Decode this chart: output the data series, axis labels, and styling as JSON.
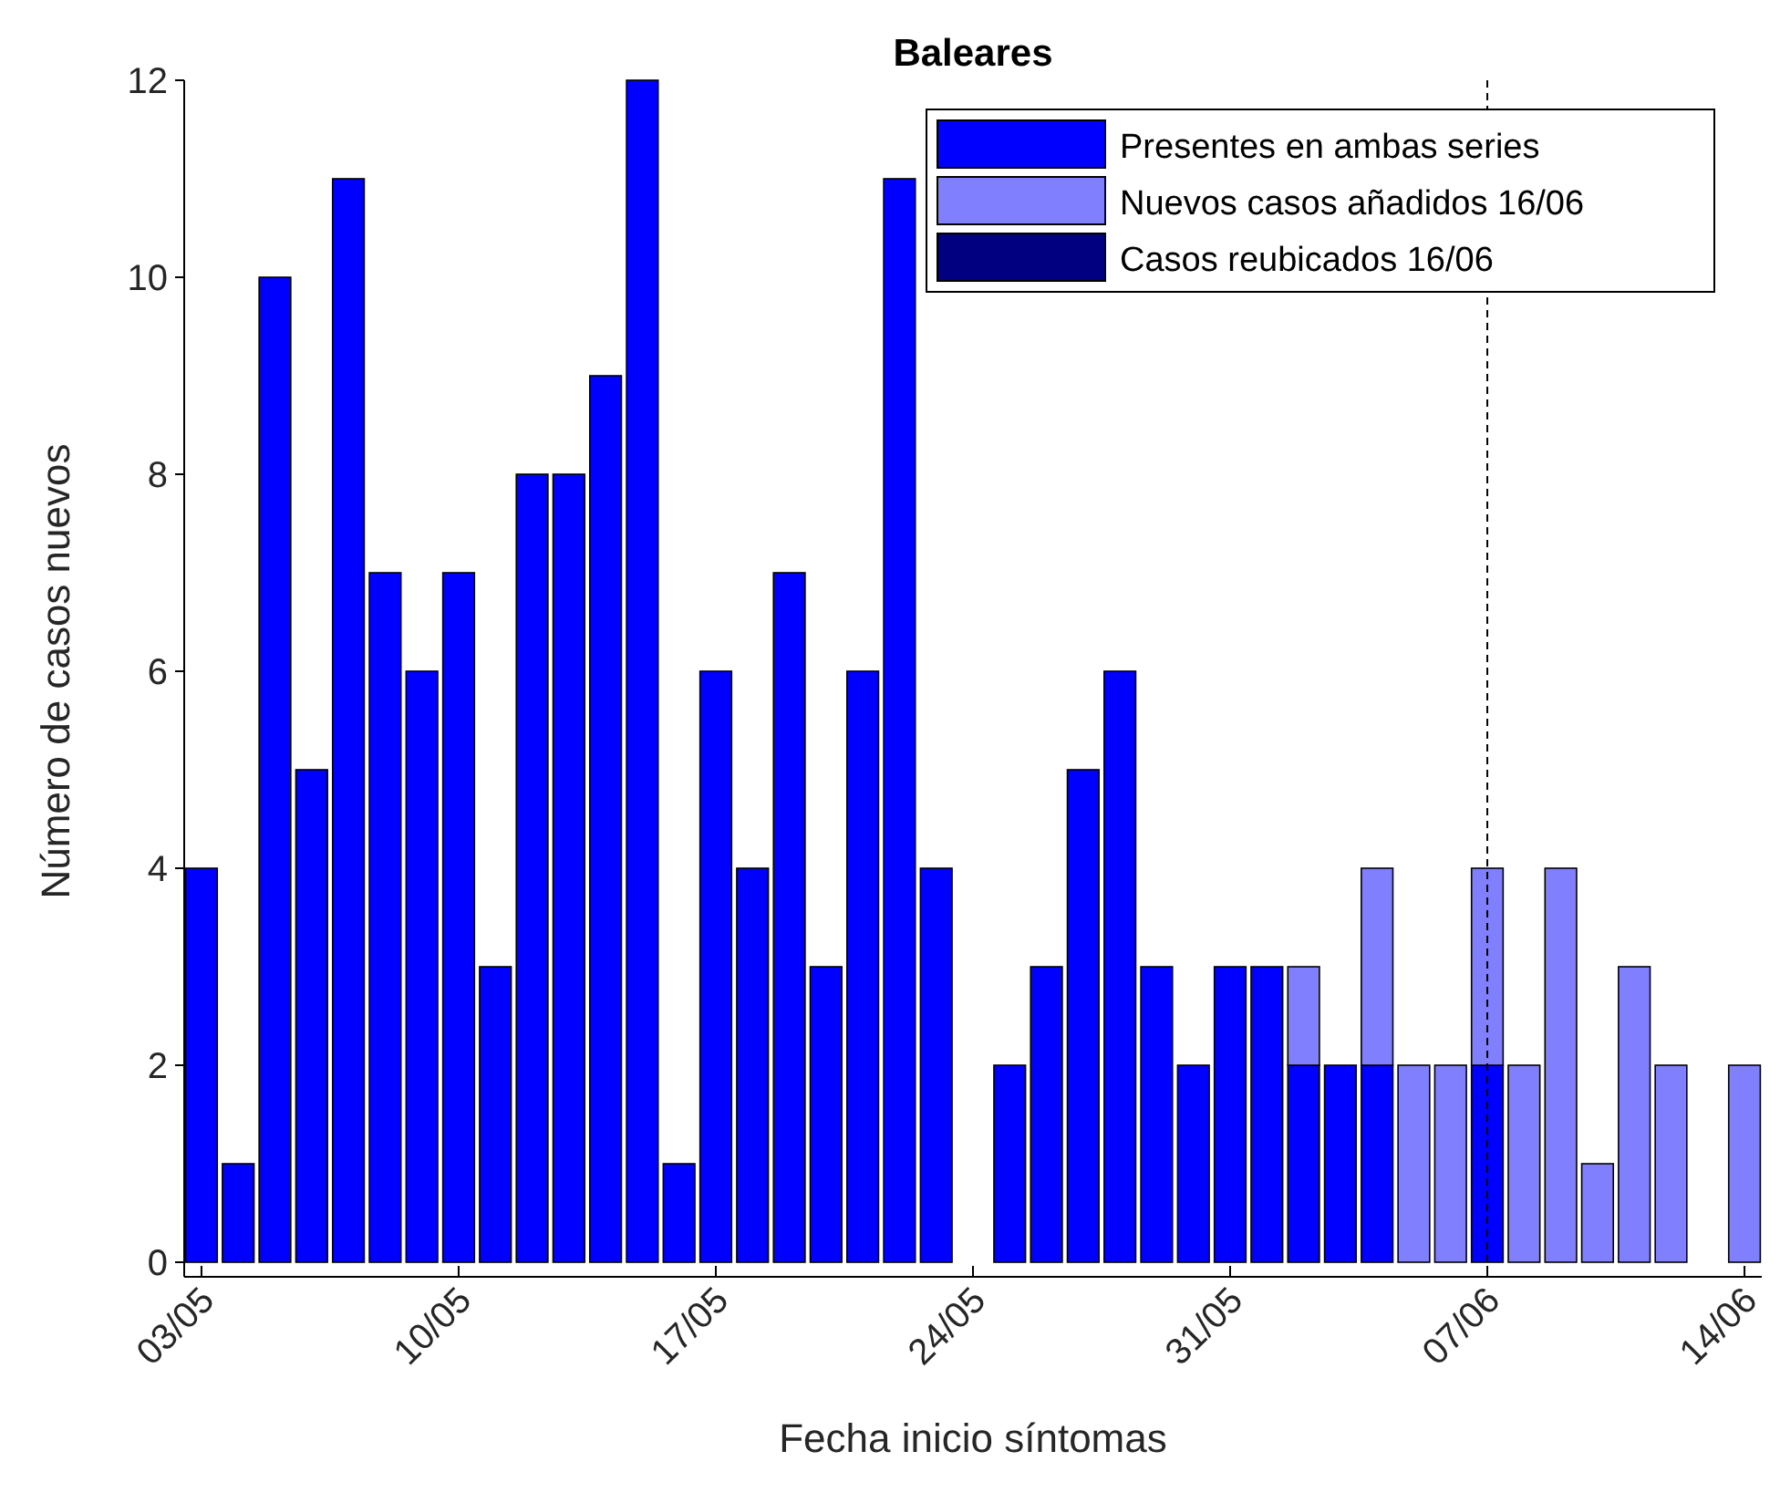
{
  "chart_data": {
    "type": "bar",
    "title": "Baleares",
    "xlabel": "Fecha inicio síntomas",
    "ylabel": "Número de casos nuevos",
    "categories": [
      "03/05",
      null,
      null,
      null,
      null,
      null,
      null,
      "10/05",
      null,
      null,
      null,
      null,
      null,
      null,
      "17/05",
      null,
      null,
      null,
      null,
      null,
      null,
      "24/05",
      null,
      null,
      null,
      null,
      null,
      null,
      "31/05",
      null,
      null,
      null,
      null,
      null,
      null,
      "07/06",
      null,
      null,
      null,
      null,
      null,
      null,
      "14/06"
    ],
    "series": [
      {
        "name": "Presentes en ambas series",
        "color": "#0000ff",
        "values": [
          4,
          1,
          10,
          5,
          11,
          7,
          6,
          7,
          3,
          8,
          8,
          9,
          12,
          1,
          6,
          4,
          7,
          3,
          6,
          11,
          4,
          0,
          2,
          3,
          5,
          6,
          3,
          2,
          3,
          3,
          2,
          2,
          2,
          0,
          0,
          2,
          0,
          0,
          0,
          0,
          0,
          0,
          0
        ]
      },
      {
        "name": "Nuevos casos añadidos 16/06",
        "color": "#8080ff",
        "values": [
          0,
          0,
          0,
          0,
          0,
          0,
          0,
          0,
          0,
          0,
          0,
          0,
          0,
          0,
          0,
          0,
          0,
          0,
          0,
          0,
          0,
          0,
          0,
          0,
          0,
          0,
          0,
          0,
          0,
          0,
          1,
          0,
          2,
          2,
          2,
          2,
          2,
          4,
          1,
          3,
          2,
          0,
          2
        ]
      },
      {
        "name": "Casos reubicados 16/06",
        "color": "#000080",
        "values": [
          0,
          0,
          0,
          0,
          0,
          0,
          0,
          0,
          0,
          0,
          0,
          0,
          0,
          0,
          0,
          0,
          0,
          0,
          0,
          0,
          0,
          0,
          0,
          0,
          0,
          0,
          0,
          0,
          0,
          0,
          0,
          0,
          0,
          0,
          0,
          0,
          0,
          0,
          0,
          0,
          0,
          0,
          0
        ]
      }
    ],
    "stacked": true,
    "ylim": [
      0,
      12
    ],
    "yticks": [
      0,
      2,
      4,
      6,
      8,
      10,
      12
    ],
    "grid": false,
    "legend": "top right",
    "ref_lines": [
      {
        "axis": "x",
        "value": "07/06",
        "line_style": "dashed",
        "color": "#000000"
      }
    ]
  }
}
